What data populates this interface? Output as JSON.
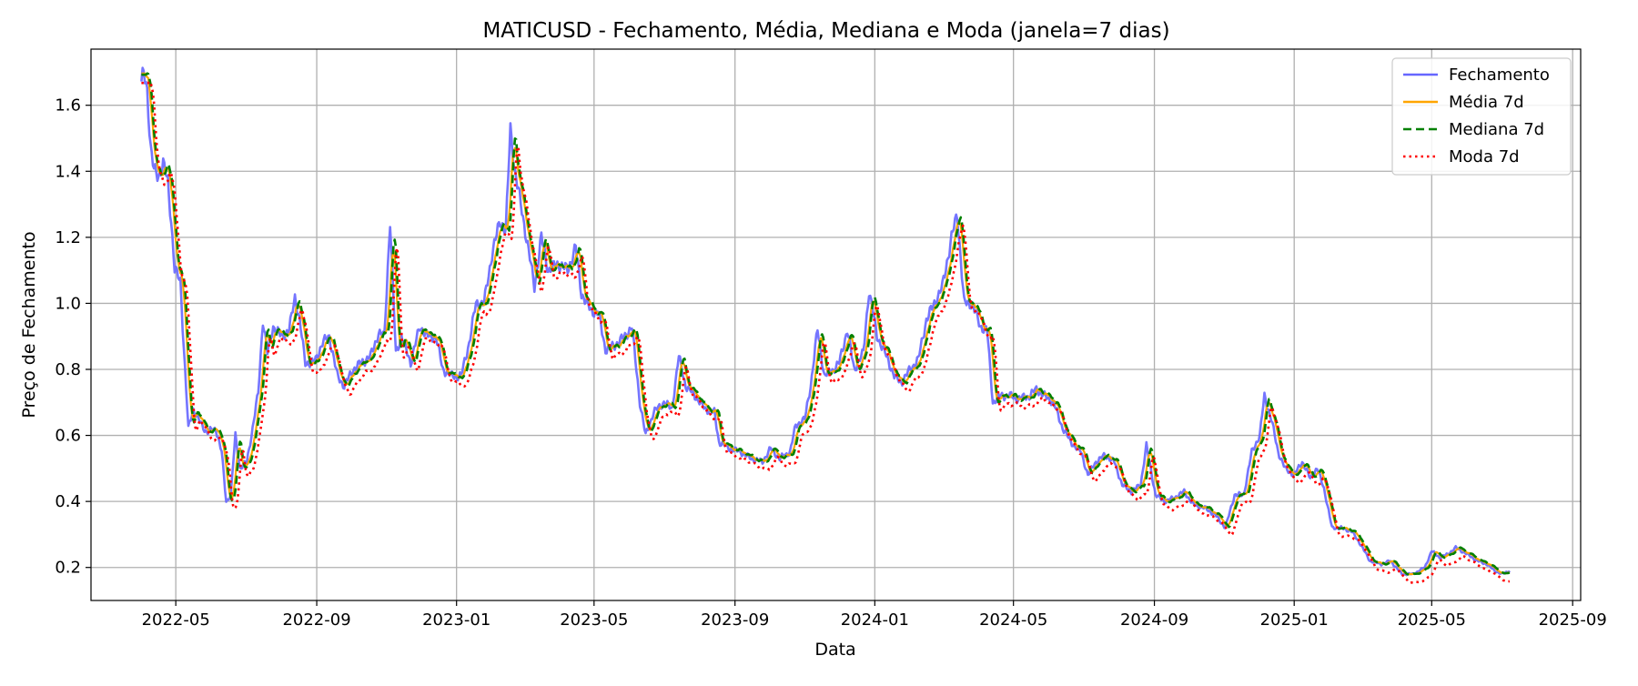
{
  "chart_data": {
    "type": "line",
    "title": "MATICUSD - Fechamento, Média, Mediana e Moda (janela=7 dias)",
    "xlabel": "Data",
    "ylabel": "Preço de Fechamento",
    "xlim": [
      "2022-02-16",
      "2025-09-08"
    ],
    "ylim": [
      0.1,
      1.77
    ],
    "x_ticks": [
      "2022-05",
      "2022-09",
      "2023-01",
      "2023-05",
      "2023-09",
      "2024-01",
      "2024-05",
      "2024-09",
      "2025-01",
      "2025-05",
      "2025-09"
    ],
    "y_ticks": [
      0.2,
      0.4,
      0.6,
      0.8,
      1.0,
      1.2,
      1.4,
      1.6
    ],
    "y_tick_labels": [
      "0.2",
      "0.4",
      "0.6",
      "0.8",
      "1.0",
      "1.2",
      "1.4",
      "1.6"
    ],
    "grid": true,
    "legend_position": "top-right",
    "series": [
      {
        "name": "Fechamento",
        "color": "#6666ff",
        "style": "solid",
        "points": [
          [
            "2022-04-01",
            1.66
          ],
          [
            "2022-04-03",
            1.7
          ],
          [
            "2022-04-06",
            1.65
          ],
          [
            "2022-04-09",
            1.47
          ],
          [
            "2022-04-12",
            1.4
          ],
          [
            "2022-04-16",
            1.39
          ],
          [
            "2022-04-20",
            1.42
          ],
          [
            "2022-04-24",
            1.37
          ],
          [
            "2022-04-27",
            1.25
          ],
          [
            "2022-04-30",
            1.1
          ],
          [
            "2022-05-05",
            1.07
          ],
          [
            "2022-05-09",
            0.8
          ],
          [
            "2022-05-12",
            0.62
          ],
          [
            "2022-05-16",
            0.68
          ],
          [
            "2022-05-22",
            0.64
          ],
          [
            "2022-05-28",
            0.61
          ],
          [
            "2022-06-05",
            0.62
          ],
          [
            "2022-06-10",
            0.55
          ],
          [
            "2022-06-14",
            0.4
          ],
          [
            "2022-06-18",
            0.42
          ],
          [
            "2022-06-22",
            0.6
          ],
          [
            "2022-06-26",
            0.5
          ],
          [
            "2022-07-02",
            0.52
          ],
          [
            "2022-07-06",
            0.6
          ],
          [
            "2022-07-12",
            0.73
          ],
          [
            "2022-07-16",
            0.95
          ],
          [
            "2022-07-20",
            0.85
          ],
          [
            "2022-07-25",
            0.93
          ],
          [
            "2022-08-01",
            0.9
          ],
          [
            "2022-08-08",
            0.92
          ],
          [
            "2022-08-13",
            1.02
          ],
          [
            "2022-08-17",
            0.95
          ],
          [
            "2022-08-22",
            0.82
          ],
          [
            "2022-08-30",
            0.82
          ],
          [
            "2022-09-06",
            0.88
          ],
          [
            "2022-09-12",
            0.9
          ],
          [
            "2022-09-19",
            0.78
          ],
          [
            "2022-09-25",
            0.75
          ],
          [
            "2022-10-03",
            0.8
          ],
          [
            "2022-10-10",
            0.82
          ],
          [
            "2022-10-18",
            0.84
          ],
          [
            "2022-10-25",
            0.91
          ],
          [
            "2022-10-30",
            0.9
          ],
          [
            "2022-11-04",
            1.25
          ],
          [
            "2022-11-09",
            0.85
          ],
          [
            "2022-11-14",
            0.9
          ],
          [
            "2022-11-22",
            0.82
          ],
          [
            "2022-11-30",
            0.93
          ],
          [
            "2022-12-07",
            0.9
          ],
          [
            "2022-12-14",
            0.9
          ],
          [
            "2022-12-20",
            0.8
          ],
          [
            "2022-12-28",
            0.78
          ],
          [
            "2023-01-05",
            0.78
          ],
          [
            "2023-01-12",
            0.88
          ],
          [
            "2023-01-18",
            1.0
          ],
          [
            "2023-01-25",
            1.0
          ],
          [
            "2023-02-01",
            1.15
          ],
          [
            "2023-02-08",
            1.25
          ],
          [
            "2023-02-13",
            1.22
          ],
          [
            "2023-02-17",
            1.53
          ],
          [
            "2023-02-21",
            1.4
          ],
          [
            "2023-02-26",
            1.3
          ],
          [
            "2023-03-03",
            1.2
          ],
          [
            "2023-03-10",
            1.05
          ],
          [
            "2023-03-16",
            1.2
          ],
          [
            "2023-03-22",
            1.1
          ],
          [
            "2023-03-31",
            1.12
          ],
          [
            "2023-04-08",
            1.1
          ],
          [
            "2023-04-15",
            1.17
          ],
          [
            "2023-04-20",
            1.03
          ],
          [
            "2023-04-28",
            0.98
          ],
          [
            "2023-05-05",
            0.97
          ],
          [
            "2023-05-11",
            0.86
          ],
          [
            "2023-05-18",
            0.87
          ],
          [
            "2023-05-28",
            0.9
          ],
          [
            "2023-06-03",
            0.93
          ],
          [
            "2023-06-10",
            0.7
          ],
          [
            "2023-06-15",
            0.6
          ],
          [
            "2023-06-22",
            0.67
          ],
          [
            "2023-07-01",
            0.7
          ],
          [
            "2023-07-08",
            0.68
          ],
          [
            "2023-07-14",
            0.84
          ],
          [
            "2023-07-20",
            0.75
          ],
          [
            "2023-07-28",
            0.72
          ],
          [
            "2023-08-06",
            0.68
          ],
          [
            "2023-08-14",
            0.67
          ],
          [
            "2023-08-18",
            0.58
          ],
          [
            "2023-08-28",
            0.56
          ],
          [
            "2023-09-06",
            0.55
          ],
          [
            "2023-09-15",
            0.53
          ],
          [
            "2023-09-25",
            0.52
          ],
          [
            "2023-10-02",
            0.56
          ],
          [
            "2023-10-10",
            0.53
          ],
          [
            "2023-10-19",
            0.55
          ],
          [
            "2023-10-24",
            0.63
          ],
          [
            "2023-11-01",
            0.65
          ],
          [
            "2023-11-06",
            0.75
          ],
          [
            "2023-11-12",
            0.92
          ],
          [
            "2023-11-18",
            0.78
          ],
          [
            "2023-11-26",
            0.8
          ],
          [
            "2023-12-01",
            0.82
          ],
          [
            "2023-12-08",
            0.92
          ],
          [
            "2023-12-14",
            0.8
          ],
          [
            "2023-12-22",
            0.85
          ],
          [
            "2023-12-27",
            1.04
          ],
          [
            "2024-01-03",
            0.9
          ],
          [
            "2024-01-10",
            0.85
          ],
          [
            "2024-01-18",
            0.78
          ],
          [
            "2024-01-24",
            0.76
          ],
          [
            "2024-02-01",
            0.8
          ],
          [
            "2024-02-08",
            0.83
          ],
          [
            "2024-02-15",
            0.95
          ],
          [
            "2024-02-22",
            1.0
          ],
          [
            "2024-02-29",
            1.05
          ],
          [
            "2024-03-08",
            1.2
          ],
          [
            "2024-03-13",
            1.27
          ],
          [
            "2024-03-19",
            1.0
          ],
          [
            "2024-03-26",
            1.0
          ],
          [
            "2024-04-02",
            0.93
          ],
          [
            "2024-04-08",
            0.92
          ],
          [
            "2024-04-13",
            0.7
          ],
          [
            "2024-04-20",
            0.72
          ],
          [
            "2024-04-28",
            0.72
          ],
          [
            "2024-05-05",
            0.71
          ],
          [
            "2024-05-15",
            0.72
          ],
          [
            "2024-05-21",
            0.74
          ],
          [
            "2024-05-28",
            0.72
          ],
          [
            "2024-06-05",
            0.7
          ],
          [
            "2024-06-12",
            0.63
          ],
          [
            "2024-06-20",
            0.58
          ],
          [
            "2024-06-29",
            0.55
          ],
          [
            "2024-07-05",
            0.48
          ],
          [
            "2024-07-12",
            0.52
          ],
          [
            "2024-07-20",
            0.54
          ],
          [
            "2024-07-28",
            0.52
          ],
          [
            "2024-08-04",
            0.45
          ],
          [
            "2024-08-12",
            0.43
          ],
          [
            "2024-08-20",
            0.45
          ],
          [
            "2024-08-25",
            0.57
          ],
          [
            "2024-09-02",
            0.42
          ],
          [
            "2024-09-10",
            0.4
          ],
          [
            "2024-09-18",
            0.41
          ],
          [
            "2024-09-27",
            0.43
          ],
          [
            "2024-10-05",
            0.39
          ],
          [
            "2024-10-15",
            0.38
          ],
          [
            "2024-10-24",
            0.36
          ],
          [
            "2024-11-02",
            0.32
          ],
          [
            "2024-11-10",
            0.42
          ],
          [
            "2024-11-18",
            0.42
          ],
          [
            "2024-11-25",
            0.55
          ],
          [
            "2024-12-02",
            0.6
          ],
          [
            "2024-12-06",
            0.72
          ],
          [
            "2024-12-12",
            0.65
          ],
          [
            "2024-12-18",
            0.55
          ],
          [
            "2024-12-24",
            0.5
          ],
          [
            "2025-01-01",
            0.48
          ],
          [
            "2025-01-08",
            0.52
          ],
          [
            "2025-01-15",
            0.47
          ],
          [
            "2025-01-21",
            0.5
          ],
          [
            "2025-01-27",
            0.44
          ],
          [
            "2025-02-03",
            0.32
          ],
          [
            "2025-02-10",
            0.32
          ],
          [
            "2025-02-20",
            0.31
          ],
          [
            "2025-02-28",
            0.27
          ],
          [
            "2025-03-08",
            0.22
          ],
          [
            "2025-03-18",
            0.21
          ],
          [
            "2025-03-26",
            0.22
          ],
          [
            "2025-04-05",
            0.18
          ],
          [
            "2025-04-15",
            0.18
          ],
          [
            "2025-04-25",
            0.2
          ],
          [
            "2025-05-01",
            0.25
          ],
          [
            "2025-05-08",
            0.23
          ],
          [
            "2025-05-15",
            0.24
          ],
          [
            "2025-05-22",
            0.26
          ],
          [
            "2025-06-01",
            0.24
          ],
          [
            "2025-06-10",
            0.22
          ],
          [
            "2025-06-18",
            0.21
          ],
          [
            "2025-06-25",
            0.19
          ],
          [
            "2025-07-01",
            0.18
          ],
          [
            "2025-07-08",
            0.19
          ]
        ]
      },
      {
        "name": "Média 7d",
        "color": "#ffa500",
        "style": "solid",
        "lag": 3,
        "smooth": 2
      },
      {
        "name": "Mediana 7d",
        "color": "#008000",
        "style": "dashed",
        "lag": 4,
        "smooth": 1
      },
      {
        "name": "Moda 7d",
        "color": "#ff0000",
        "style": "dotted",
        "lag": 6,
        "smooth": 1,
        "offset": -0.025
      }
    ]
  }
}
